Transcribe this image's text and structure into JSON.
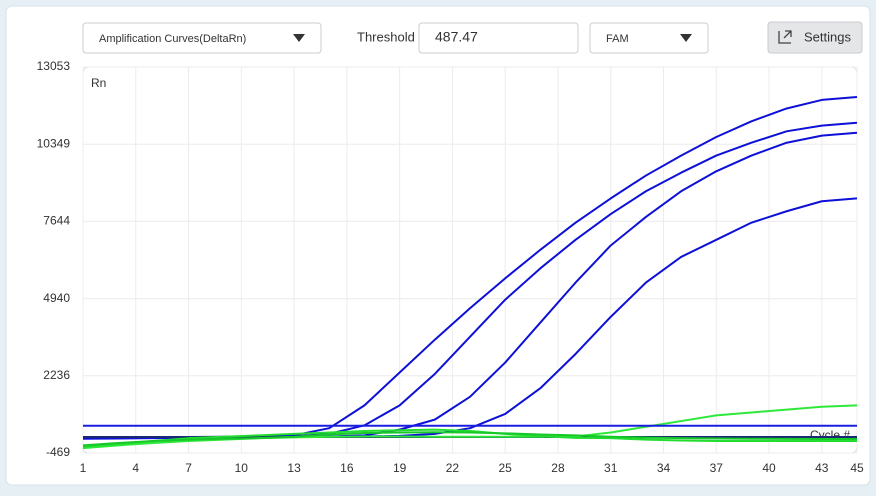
{
  "toolbar": {
    "view_select": "Amplification Curves(DeltaRn)",
    "threshold_label": "Threshold",
    "dye_select": "FAM",
    "settings_button": "Settings"
  },
  "chart_data": {
    "type": "line",
    "y_label": "Rn",
    "x_label": "Cycle #",
    "threshold": 487.47,
    "threshold_color": "#1a1ee0",
    "xlim": [
      1,
      45
    ],
    "xticks": [
      1,
      4,
      7,
      10,
      13,
      16,
      19,
      22,
      25,
      28,
      31,
      34,
      37,
      40,
      43,
      45
    ],
    "ylim": [
      -469,
      13053
    ],
    "yticks": [
      -469,
      2236,
      4940,
      7644,
      10349,
      13053
    ],
    "grid": true,
    "x": [
      1,
      3,
      5,
      7,
      9,
      11,
      13,
      15,
      17,
      19,
      21,
      23,
      25,
      27,
      29,
      31,
      33,
      35,
      37,
      39,
      41,
      43,
      45
    ],
    "series": [
      {
        "color": "#0d10d6",
        "values": [
          60,
          70,
          80,
          90,
          100,
          110,
          150,
          400,
          1200,
          2350,
          3500,
          4600,
          5650,
          6650,
          7600,
          8450,
          9250,
          9950,
          10600,
          11150,
          11600,
          11900,
          12000
        ]
      },
      {
        "color": "#0d10d6",
        "values": [
          50,
          60,
          70,
          80,
          90,
          100,
          120,
          200,
          500,
          1200,
          2300,
          3600,
          4900,
          6000,
          7000,
          7900,
          8700,
          9350,
          9950,
          10400,
          10800,
          11000,
          11100
        ]
      },
      {
        "color": "#0d10d6",
        "values": [
          40,
          50,
          60,
          70,
          80,
          90,
          100,
          110,
          150,
          350,
          700,
          1500,
          2700,
          4100,
          5500,
          6800,
          7800,
          8700,
          9400,
          9950,
          10400,
          10650,
          10750
        ]
      },
      {
        "color": "#0d10d6",
        "values": [
          30,
          40,
          50,
          60,
          70,
          80,
          90,
          100,
          110,
          130,
          200,
          400,
          900,
          1800,
          3000,
          4300,
          5500,
          6400,
          7000,
          7600,
          8000,
          8350,
          8450
        ]
      },
      {
        "color": "#1a2a70",
        "values": [
          90,
          90,
          90,
          90,
          90,
          90,
          90,
          90,
          90,
          90,
          90,
          90,
          90,
          90,
          90,
          90,
          90,
          90,
          90,
          90,
          90,
          90,
          90
        ]
      },
      {
        "color": "#2ee83a",
        "values": [
          -300,
          -200,
          -120,
          -50,
          0,
          50,
          80,
          100,
          110,
          110,
          100,
          100,
          100,
          100,
          110,
          250,
          450,
          650,
          850,
          950,
          1050,
          1150,
          1200
        ]
      },
      {
        "color": "#22dd30",
        "values": [
          -250,
          -150,
          -50,
          50,
          100,
          150,
          200,
          250,
          300,
          330,
          350,
          300,
          200,
          120,
          60,
          50,
          0,
          -30,
          -50,
          -50,
          -50,
          -50,
          -50
        ]
      },
      {
        "color": "#16c828",
        "values": [
          -200,
          -120,
          -50,
          0,
          30,
          50,
          100,
          180,
          230,
          250,
          260,
          250,
          220,
          180,
          150,
          100,
          70,
          50,
          40,
          30,
          25,
          20,
          20
        ]
      }
    ]
  }
}
